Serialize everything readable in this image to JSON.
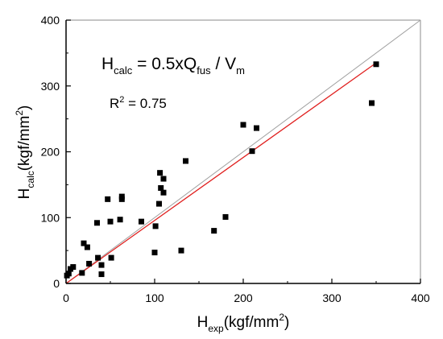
{
  "chart_data": {
    "type": "scatter",
    "title": "",
    "xlabel": {
      "base": "H",
      "sub": "exp",
      "rest": "(kgf/mm",
      "sup": "2",
      "close": ")"
    },
    "ylabel": {
      "base": "H",
      "sub": "calc",
      "rest": "(kgf/mm",
      "sup": "2",
      "close": ")"
    },
    "xlim": [
      0,
      400
    ],
    "ylim": [
      0,
      400
    ],
    "xticks": [
      "0",
      "100",
      "200",
      "300",
      "400"
    ],
    "yticks": [
      "0",
      "100",
      "200",
      "300",
      "400"
    ],
    "grid": false,
    "legend": "none",
    "annotations": {
      "formula": {
        "h": "H",
        "calc": "calc",
        "mid": " = 0.5xQ",
        "fus": "fus",
        "div": " / V",
        "m": "m"
      },
      "r2": {
        "r": "R",
        "sup": "2",
        "val": " = 0.75"
      }
    },
    "series": [
      {
        "values": [
          {
            "x": 1,
            "y": 12
          },
          {
            "x": 3,
            "y": 15
          },
          {
            "x": 5,
            "y": 22
          },
          {
            "x": 8,
            "y": 25
          },
          {
            "x": 18,
            "y": 16
          },
          {
            "x": 20,
            "y": 61
          },
          {
            "x": 24,
            "y": 55
          },
          {
            "x": 26,
            "y": 30
          },
          {
            "x": 35,
            "y": 92
          },
          {
            "x": 36,
            "y": 39
          },
          {
            "x": 40,
            "y": 28
          },
          {
            "x": 40,
            "y": 14
          },
          {
            "x": 47,
            "y": 128
          },
          {
            "x": 50,
            "y": 94
          },
          {
            "x": 51,
            "y": 39
          },
          {
            "x": 61,
            "y": 97
          },
          {
            "x": 63,
            "y": 132
          },
          {
            "x": 63,
            "y": 128
          },
          {
            "x": 85,
            "y": 94
          },
          {
            "x": 100,
            "y": 47
          },
          {
            "x": 101,
            "y": 87
          },
          {
            "x": 105,
            "y": 121
          },
          {
            "x": 106,
            "y": 168
          },
          {
            "x": 107,
            "y": 145
          },
          {
            "x": 110,
            "y": 159
          },
          {
            "x": 110,
            "y": 138
          },
          {
            "x": 130,
            "y": 50
          },
          {
            "x": 135,
            "y": 186
          },
          {
            "x": 167,
            "y": 80
          },
          {
            "x": 180,
            "y": 101
          },
          {
            "x": 200,
            "y": 241
          },
          {
            "x": 210,
            "y": 201
          },
          {
            "x": 215,
            "y": 236
          },
          {
            "x": 345,
            "y": 274
          },
          {
            "x": 350,
            "y": 333
          }
        ]
      }
    ],
    "lines": [
      {
        "kind": "identity",
        "color": "#a0a0a0",
        "from": [
          0,
          0
        ],
        "to": [
          400,
          400
        ]
      },
      {
        "kind": "fit",
        "color": "#e0201f",
        "from": [
          0,
          0
        ],
        "to": [
          350,
          335
        ]
      }
    ],
    "frame_color": "#a0a0a0",
    "axis_color": "#000000",
    "marker_color": "#000000"
  }
}
